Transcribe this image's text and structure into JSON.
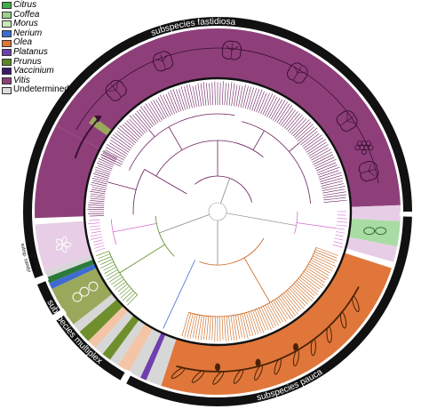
{
  "legend": [
    {
      "label": "Citrus",
      "color": "#3fae49",
      "italic": true
    },
    {
      "label": "Coffea",
      "color": "#9bd18a",
      "italic": true
    },
    {
      "label": "Morus",
      "color": "#c9e8b7",
      "italic": true
    },
    {
      "label": "Nerium",
      "color": "#3f6bd1",
      "italic": true
    },
    {
      "label": "Olea",
      "color": "#e0763a",
      "italic": true
    },
    {
      "label": "Platanus",
      "color": "#6f3fae",
      "italic": true
    },
    {
      "label": "Prunus",
      "color": "#5a8a22",
      "italic": true
    },
    {
      "label": "Vaccinium",
      "color": "#3a1a6b",
      "italic": true
    },
    {
      "label": "Vitis",
      "color": "#8e3f7a",
      "italic": true
    },
    {
      "label": "Undetermined",
      "color": "#dcdcdc",
      "italic": false
    }
  ],
  "subspecies": {
    "fastidiosa": "subspecies fastidiosa",
    "pauca": "subspecies pauca",
    "multiplex": "subspecies multiplex",
    "sandyi": "subsp. sandyi",
    "morus": "subsp. morus"
  },
  "colors": {
    "vitis": "#8e3f7a",
    "vitis_light": "#e7cde6",
    "olea": "#e0763a",
    "olea_light": "#f3c4a6",
    "prunus": "#6f8f2c",
    "citrus": "#a9dca5",
    "grey": "#d7d7d7",
    "tree_vitis": "#6b1f5e",
    "tree_olea": "#c9641a",
    "tree_prunus": "#5a8a22",
    "tree_pink": "#d46fd0",
    "tree_blue": "#3f6bd1",
    "ring": "#111111"
  }
}
